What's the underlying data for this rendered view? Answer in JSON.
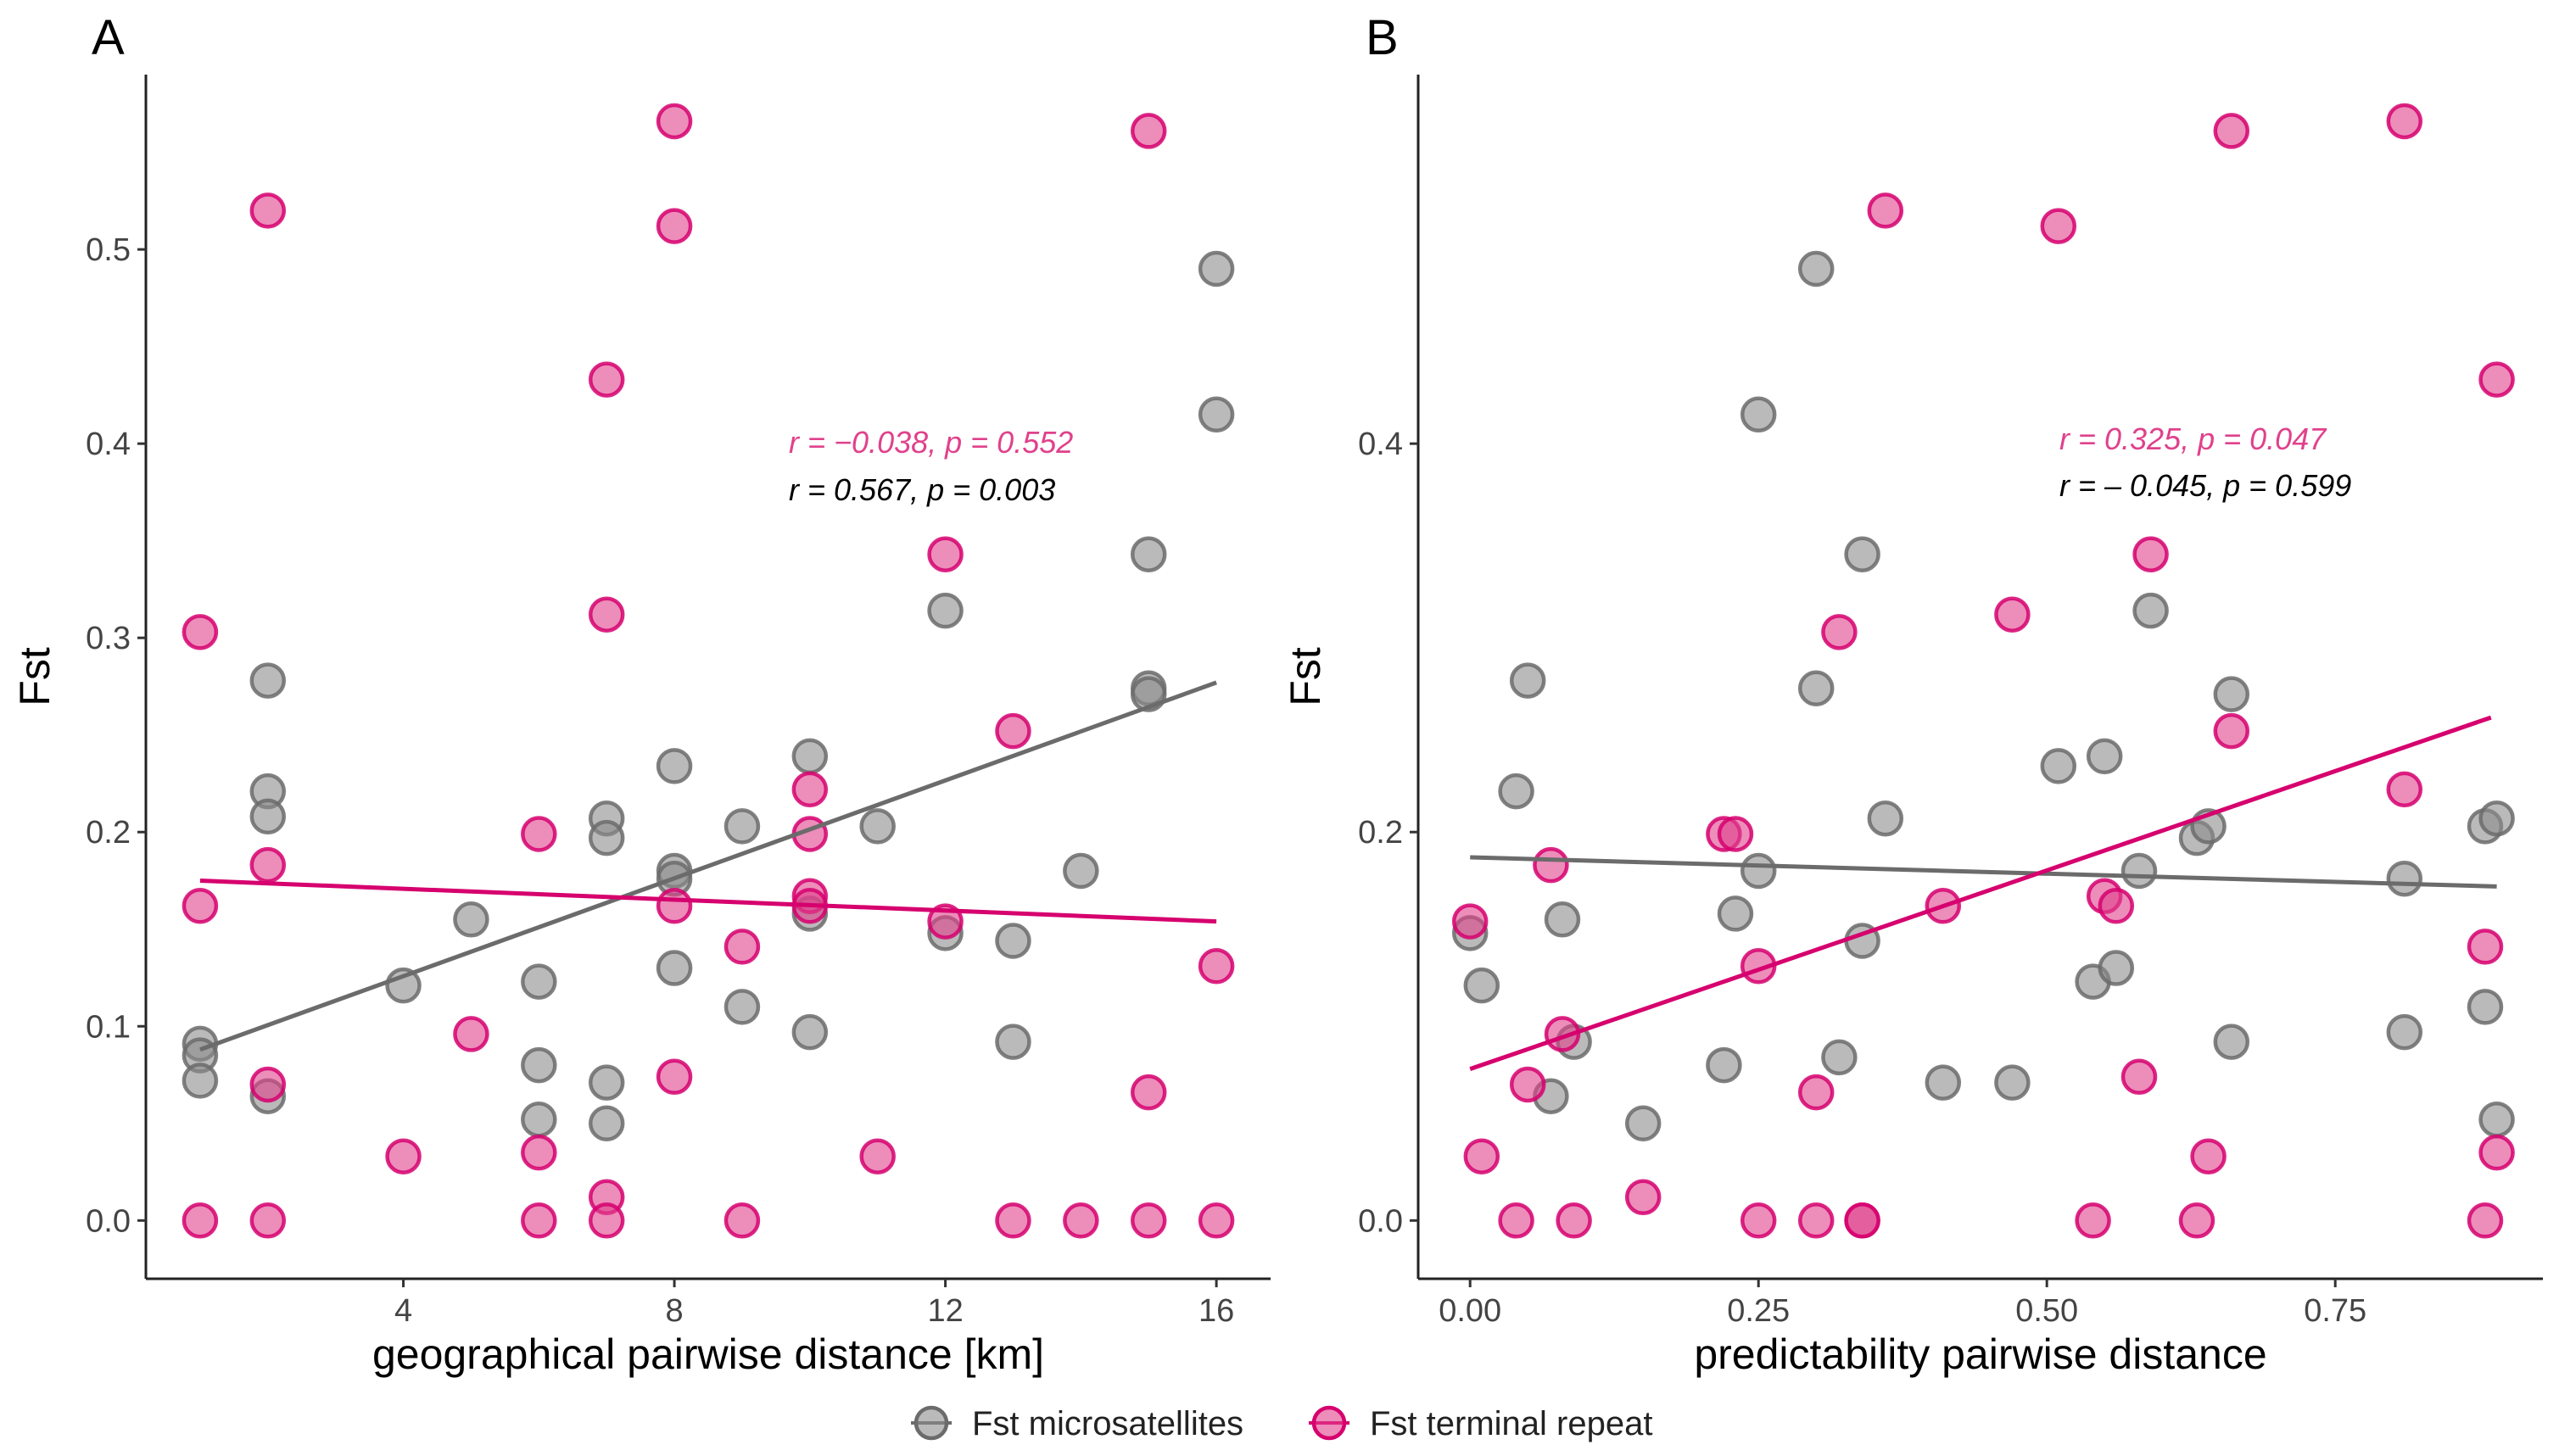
{
  "legend": {
    "items": [
      {
        "label": "Fst microsatellites",
        "color": "#777777"
      },
      {
        "label": "Fst terminal repeat",
        "color": "#d6006e"
      }
    ]
  },
  "colors": {
    "micro_fill": "#8c8c8c",
    "micro_stroke": "#6b6b6b",
    "micro_line": "#6b6b6b",
    "repeat_fill": "#e0418c",
    "repeat_stroke": "#d6006e",
    "repeat_line": "#d6006e",
    "stat_repeat": "#e0418c",
    "stat_micro": "#000000"
  },
  "chart_data": [
    {
      "panel": "A",
      "type": "scatter",
      "xlabel": "geographical pairwise distance [km]",
      "ylabel": "Fst",
      "xlim": [
        0.2,
        16.8
      ],
      "ylim": [
        -0.03,
        0.59
      ],
      "xticks": [
        4,
        8,
        12,
        16
      ],
      "xtick_labels": [
        "4",
        "8",
        "12",
        "16"
      ],
      "yticks": [
        0.0,
        0.1,
        0.2,
        0.3,
        0.4,
        0.5
      ],
      "ytick_labels": [
        "0.0",
        "0.1",
        "0.2",
        "0.3",
        "0.4",
        "0.5"
      ],
      "annotation": {
        "repeat": "r = −0.038, p = 0.552",
        "micro": "r = 0.567, p = 0.003"
      },
      "series": [
        {
          "name": "Fst microsatellites",
          "points": [
            [
              1,
              0.091
            ],
            [
              1,
              0.085
            ],
            [
              1,
              0.072
            ],
            [
              2,
              0.278
            ],
            [
              2,
              0.221
            ],
            [
              2,
              0.208
            ],
            [
              2,
              0.064
            ],
            [
              4,
              0.121
            ],
            [
              5,
              0.155
            ],
            [
              6,
              0.123
            ],
            [
              6,
              0.08
            ],
            [
              6,
              0.052
            ],
            [
              7,
              0.207
            ],
            [
              7,
              0.197
            ],
            [
              7,
              0.071
            ],
            [
              7,
              0.05
            ],
            [
              8,
              0.234
            ],
            [
              8,
              0.18
            ],
            [
              8,
              0.176
            ],
            [
              8,
              0.13
            ],
            [
              9,
              0.203
            ],
            [
              9,
              0.11
            ],
            [
              10,
              0.239
            ],
            [
              10,
              0.158
            ],
            [
              10,
              0.097
            ],
            [
              11,
              0.203
            ],
            [
              12,
              0.314
            ],
            [
              12,
              0.148
            ],
            [
              13,
              0.144
            ],
            [
              13,
              0.092
            ],
            [
              14,
              0.18
            ],
            [
              15,
              0.343
            ],
            [
              15,
              0.274
            ],
            [
              15,
              0.271
            ],
            [
              16,
              0.49
            ],
            [
              16,
              0.415
            ]
          ],
          "fit": [
            [
              1,
              0.088
            ],
            [
              16,
              0.277
            ]
          ]
        },
        {
          "name": "Fst terminal repeat",
          "points": [
            [
              1,
              0.303
            ],
            [
              1,
              0.162
            ],
            [
              1,
              0.0
            ],
            [
              2,
              0.52
            ],
            [
              2,
              0.183
            ],
            [
              2,
              0.07
            ],
            [
              2,
              0.0
            ],
            [
              4,
              0.033
            ],
            [
              5,
              0.096
            ],
            [
              6,
              0.199
            ],
            [
              6,
              0.035
            ],
            [
              6,
              0.0
            ],
            [
              7,
              0.433
            ],
            [
              7,
              0.312
            ],
            [
              7,
              0.012
            ],
            [
              7,
              0.0
            ],
            [
              8,
              0.566
            ],
            [
              8,
              0.512
            ],
            [
              8,
              0.162
            ],
            [
              8,
              0.074
            ],
            [
              9,
              0.141
            ],
            [
              9,
              0.0
            ],
            [
              10,
              0.222
            ],
            [
              10,
              0.199
            ],
            [
              10,
              0.167
            ],
            [
              10,
              0.162
            ],
            [
              11,
              0.033
            ],
            [
              12,
              0.343
            ],
            [
              12,
              0.154
            ],
            [
              13,
              0.252
            ],
            [
              13,
              0.0
            ],
            [
              14,
              0.0
            ],
            [
              15,
              0.561
            ],
            [
              15,
              0.066
            ],
            [
              15,
              0.0
            ],
            [
              16,
              0.131
            ],
            [
              16,
              0.0
            ]
          ],
          "fit": [
            [
              1,
              0.175
            ],
            [
              16,
              0.154
            ]
          ]
        }
      ]
    },
    {
      "panel": "B",
      "type": "scatter",
      "xlabel": "predictability pairwise distance",
      "ylabel": "Fst",
      "xlim": [
        -0.045,
        0.93
      ],
      "ylim": [
        -0.03,
        0.59
      ],
      "xticks": [
        0.0,
        0.25,
        0.5,
        0.75
      ],
      "xtick_labels": [
        "0.00",
        "0.25",
        "0.50",
        "0.75"
      ],
      "yticks": [
        0.0,
        0.2,
        0.4
      ],
      "ytick_labels": [
        "0.0",
        "0.2",
        "0.4"
      ],
      "annotation": {
        "repeat": "r = 0.325, p = 0.047",
        "micro": "r = – 0.045, p = 0.599"
      },
      "series": [
        {
          "name": "Fst microsatellites",
          "points": [
            [
              0.0,
              0.148
            ],
            [
              0.01,
              0.121
            ],
            [
              0.04,
              0.221
            ],
            [
              0.05,
              0.278
            ],
            [
              0.07,
              0.064
            ],
            [
              0.08,
              0.155
            ],
            [
              0.09,
              0.092
            ],
            [
              0.15,
              0.05
            ],
            [
              0.22,
              0.08
            ],
            [
              0.23,
              0.158
            ],
            [
              0.25,
              0.415
            ],
            [
              0.25,
              0.18
            ],
            [
              0.3,
              0.49
            ],
            [
              0.3,
              0.274
            ],
            [
              0.32,
              0.084
            ],
            [
              0.34,
              0.343
            ],
            [
              0.34,
              0.144
            ],
            [
              0.36,
              0.207
            ],
            [
              0.41,
              0.071
            ],
            [
              0.47,
              0.071
            ],
            [
              0.51,
              0.234
            ],
            [
              0.54,
              0.123
            ],
            [
              0.55,
              0.239
            ],
            [
              0.56,
              0.13
            ],
            [
              0.58,
              0.18
            ],
            [
              0.59,
              0.314
            ],
            [
              0.63,
              0.197
            ],
            [
              0.64,
              0.203
            ],
            [
              0.66,
              0.271
            ],
            [
              0.66,
              0.092
            ],
            [
              0.81,
              0.176
            ],
            [
              0.81,
              0.097
            ],
            [
              0.88,
              0.203
            ],
            [
              0.88,
              0.11
            ],
            [
              0.89,
              0.207
            ],
            [
              0.89,
              0.052
            ]
          ],
          "fit": [
            [
              0.0,
              0.187
            ],
            [
              0.89,
              0.172
            ]
          ]
        },
        {
          "name": "Fst terminal repeat",
          "points": [
            [
              0.0,
              0.154
            ],
            [
              0.01,
              0.033
            ],
            [
              0.04,
              0.0
            ],
            [
              0.05,
              0.07
            ],
            [
              0.07,
              0.183
            ],
            [
              0.08,
              0.096
            ],
            [
              0.09,
              0.0
            ],
            [
              0.15,
              0.012
            ],
            [
              0.22,
              0.199
            ],
            [
              0.23,
              0.199
            ],
            [
              0.25,
              0.131
            ],
            [
              0.25,
              0.0
            ],
            [
              0.3,
              0.066
            ],
            [
              0.3,
              0.0
            ],
            [
              0.32,
              0.303
            ],
            [
              0.34,
              0.0
            ],
            [
              0.34,
              0.0
            ],
            [
              0.36,
              0.52
            ],
            [
              0.41,
              0.162
            ],
            [
              0.47,
              0.312
            ],
            [
              0.51,
              0.512
            ],
            [
              0.54,
              0.0
            ],
            [
              0.55,
              0.167
            ],
            [
              0.56,
              0.162
            ],
            [
              0.58,
              0.074
            ],
            [
              0.59,
              0.343
            ],
            [
              0.63,
              0.0
            ],
            [
              0.64,
              0.033
            ],
            [
              0.66,
              0.561
            ],
            [
              0.66,
              0.252
            ],
            [
              0.81,
              0.566
            ],
            [
              0.81,
              0.222
            ],
            [
              0.88,
              0.141
            ],
            [
              0.88,
              0.0
            ],
            [
              0.89,
              0.433
            ],
            [
              0.89,
              0.035
            ]
          ],
          "fit": [
            [
              0.0,
              0.078
            ],
            [
              0.885,
              0.259
            ]
          ]
        }
      ]
    }
  ]
}
